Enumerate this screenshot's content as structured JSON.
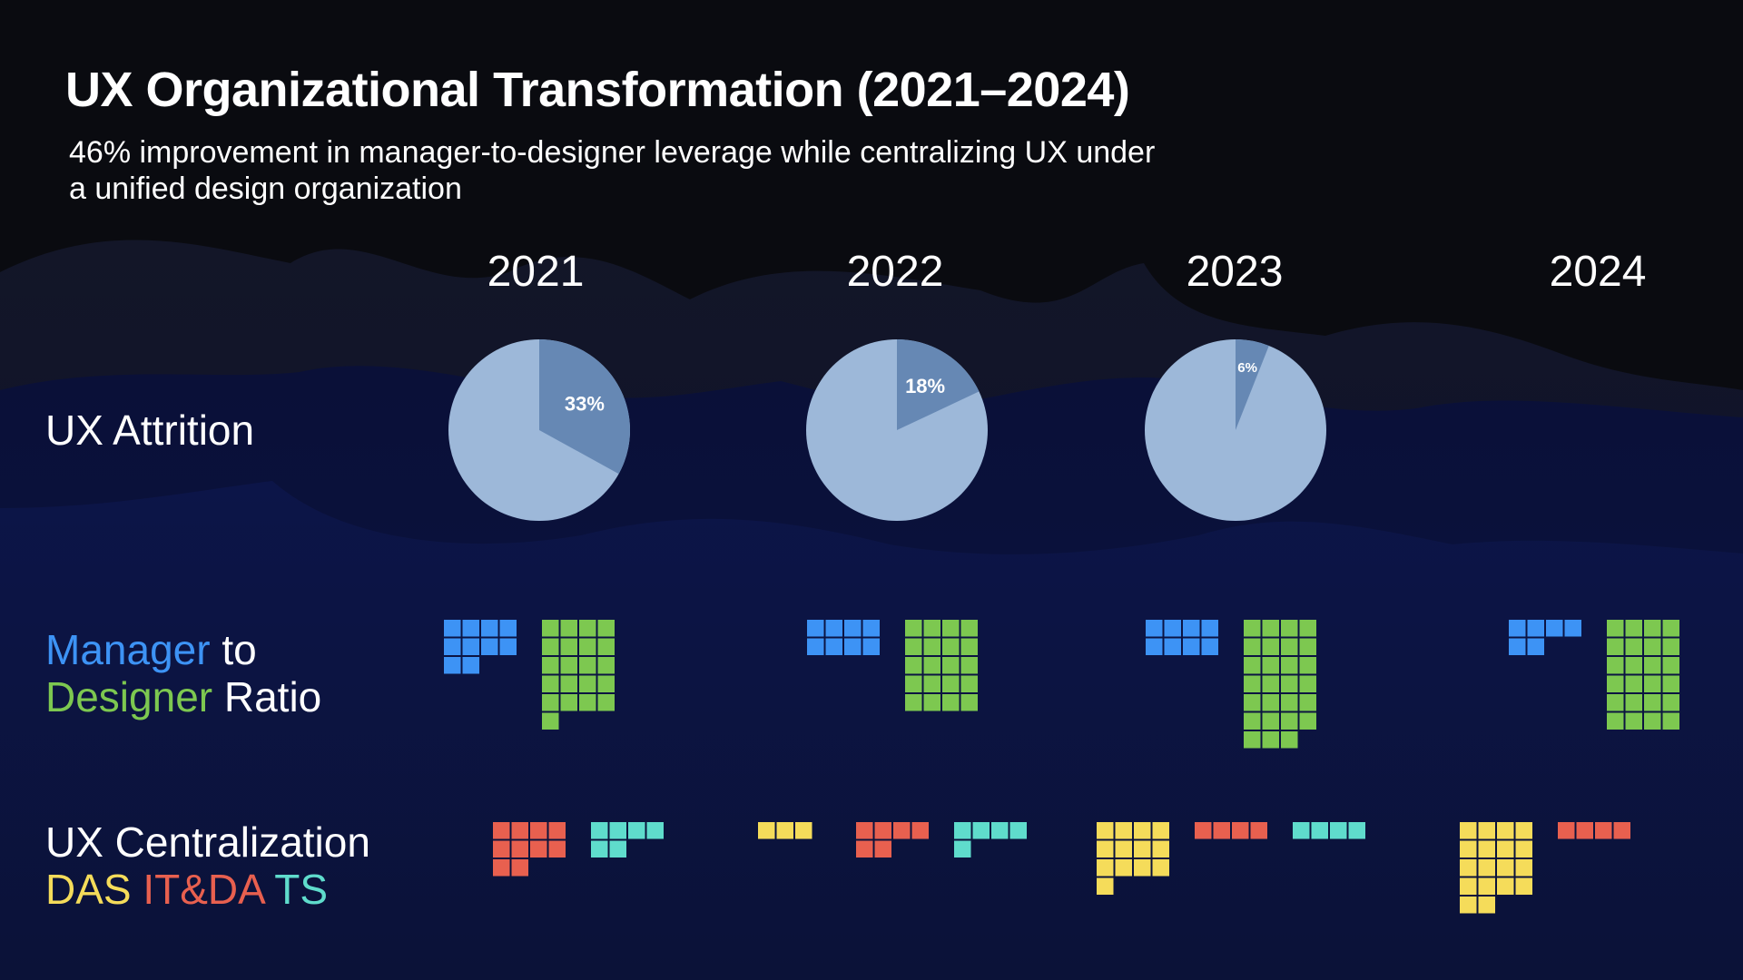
{
  "title": "UX Organizational Transformation (2021–2024)",
  "subtitle": "46% improvement in manager-to-designer leverage while centralizing UX under a unified design organization",
  "years": [
    "2021",
    "2022",
    "2023",
    "2024"
  ],
  "labels": {
    "attrition": "UX Attrition",
    "manager": "Manager",
    "to": "to",
    "designer": "Designer",
    "ratio": "Ratio",
    "centralization": "UX Centralization",
    "das": "DAS",
    "itda": "IT&DA",
    "ts": "TS"
  },
  "colors": {
    "background": "#0a0b10",
    "navy": "#0b1240",
    "pie_fill": "#9db8d9",
    "pie_slice": "#6688b4",
    "manager": "#3d93f5",
    "designer": "#7dc850",
    "das": "#f5dc5a",
    "itda": "#e8604f",
    "ts": "#5fdccc"
  },
  "chart_data": [
    {
      "type": "pie",
      "title": "UX Attrition",
      "categories": [
        "2021",
        "2022",
        "2023",
        "2024"
      ],
      "values": [
        33,
        18,
        6,
        null
      ],
      "data_labels": [
        "33%",
        "18%",
        "6%",
        ""
      ],
      "unit": "%"
    },
    {
      "type": "waffle",
      "title": "Manager to Designer Ratio",
      "categories": [
        "2021",
        "2022",
        "2023",
        "2024"
      ],
      "series": [
        {
          "name": "Manager",
          "values": [
            10,
            8,
            8,
            6
          ]
        },
        {
          "name": "Designer",
          "values": [
            21,
            20,
            27,
            24
          ]
        }
      ]
    },
    {
      "type": "waffle",
      "title": "UX Centralization",
      "categories": [
        "2021",
        "2022",
        "2023",
        "2024"
      ],
      "series": [
        {
          "name": "DAS",
          "values": [
            0,
            3,
            13,
            18
          ]
        },
        {
          "name": "IT&DA",
          "values": [
            10,
            6,
            4,
            4
          ]
        },
        {
          "name": "TS",
          "values": [
            6,
            5,
            4,
            0
          ]
        }
      ]
    }
  ]
}
